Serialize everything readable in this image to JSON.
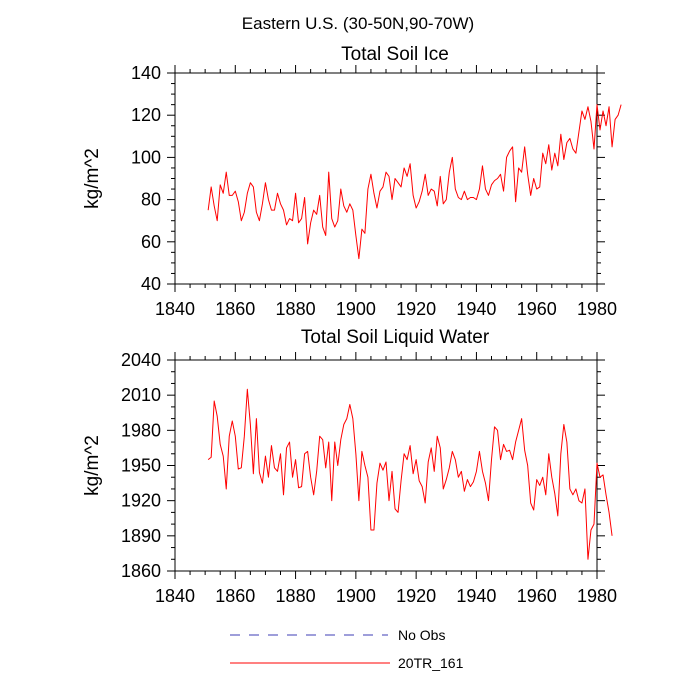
{
  "suptitle": "Eastern U.S. (30-50N,90-70W)",
  "colors": {
    "model": "#ff0000",
    "obs": "#3c3cb4",
    "axis": "#000000"
  },
  "legend": [
    {
      "label": "No Obs",
      "style": "dashed",
      "color": "#3c3cb4"
    },
    {
      "label": "20TR_161",
      "style": "solid",
      "color": "#ff0000"
    }
  ],
  "chart_data": [
    {
      "type": "line",
      "title": "Total Soil Ice",
      "xlabel": "",
      "ylabel": "kg/m^2",
      "xlim": [
        1840,
        1980
      ],
      "ylim": [
        40,
        140
      ],
      "xticks": [
        1840,
        1860,
        1880,
        1900,
        1920,
        1940,
        1960,
        1980
      ],
      "yticks": [
        40,
        60,
        80,
        100,
        120,
        140
      ],
      "grid": false,
      "series": [
        {
          "name": "20TR_161",
          "x_start": 1851,
          "x_step": 1,
          "values": [
            75,
            86,
            77,
            70,
            87,
            83,
            93,
            82,
            82,
            84,
            79,
            70,
            74,
            83,
            88,
            86,
            74,
            70,
            78,
            88,
            80,
            75,
            75,
            83,
            78,
            75,
            68,
            71,
            70,
            83,
            69,
            71,
            81,
            59,
            69,
            75,
            73,
            82,
            67,
            63,
            93,
            71,
            67,
            70,
            85,
            77,
            74,
            78,
            75,
            63,
            52,
            66,
            64,
            85,
            92,
            83,
            76,
            84,
            86,
            93,
            91,
            80,
            90,
            88,
            86,
            95,
            91,
            97,
            82,
            76,
            79,
            84,
            92,
            82,
            85,
            84,
            77,
            91,
            78,
            80,
            93,
            100,
            85,
            81,
            80,
            84,
            80,
            81,
            81,
            80,
            85,
            96,
            85,
            82,
            87,
            89,
            90,
            92,
            84,
            100,
            103,
            105,
            79,
            95,
            93,
            105,
            92,
            82,
            90,
            85,
            86,
            102,
            97,
            106,
            94,
            102,
            96,
            111,
            99,
            107,
            109,
            104,
            102,
            112,
            122,
            118,
            124,
            117,
            104,
            125,
            113,
            122,
            115,
            124,
            105,
            118,
            120,
            125
          ]
        }
      ]
    },
    {
      "type": "line",
      "title": "Total Soil Liquid Water",
      "xlabel": "",
      "ylabel": "kg/m^2",
      "xlim": [
        1840,
        1980
      ],
      "ylim": [
        1860,
        2040
      ],
      "xticks": [
        1840,
        1860,
        1880,
        1900,
        1920,
        1940,
        1960,
        1980
      ],
      "yticks": [
        1860,
        1890,
        1920,
        1950,
        1980,
        2010,
        2040
      ],
      "grid": false,
      "series": [
        {
          "name": "20TR_161",
          "x_start": 1851,
          "x_step": 1,
          "values": [
            1955,
            1957,
            2005,
            1992,
            1968,
            1958,
            1930,
            1975,
            1988,
            1975,
            1947,
            1948,
            1975,
            2015,
            1985,
            1943,
            1990,
            1944,
            1935,
            1958,
            1940,
            1967,
            1948,
            1945,
            1960,
            1925,
            1965,
            1970,
            1940,
            1955,
            1931,
            1932,
            1960,
            1962,
            1940,
            1925,
            1945,
            1975,
            1972,
            1948,
            1970,
            1920,
            1970,
            1950,
            1972,
            1985,
            1990,
            2002,
            1990,
            1960,
            1920,
            1962,
            1950,
            1940,
            1895,
            1895,
            1935,
            1952,
            1946,
            1953,
            1920,
            1945,
            1913,
            1910,
            1937,
            1960,
            1955,
            1967,
            1943,
            1955,
            1937,
            1932,
            1918,
            1953,
            1965,
            1945,
            1975,
            1965,
            1930,
            1938,
            1948,
            1962,
            1955,
            1940,
            1945,
            1928,
            1938,
            1932,
            1936,
            1945,
            1962,
            1945,
            1935,
            1920,
            1955,
            1983,
            1980,
            1955,
            1968,
            1962,
            1963,
            1955,
            1970,
            1980,
            1990,
            1963,
            1950,
            1918,
            1912,
            1938,
            1933,
            1940,
            1925,
            1960,
            1940,
            1926,
            1907,
            1960,
            1985,
            1970,
            1930,
            1925,
            1930,
            1920,
            1918,
            1930,
            1870,
            1895,
            1900,
            1952,
            1940,
            1942,
            1925,
            1910,
            1890
          ]
        }
      ]
    }
  ]
}
